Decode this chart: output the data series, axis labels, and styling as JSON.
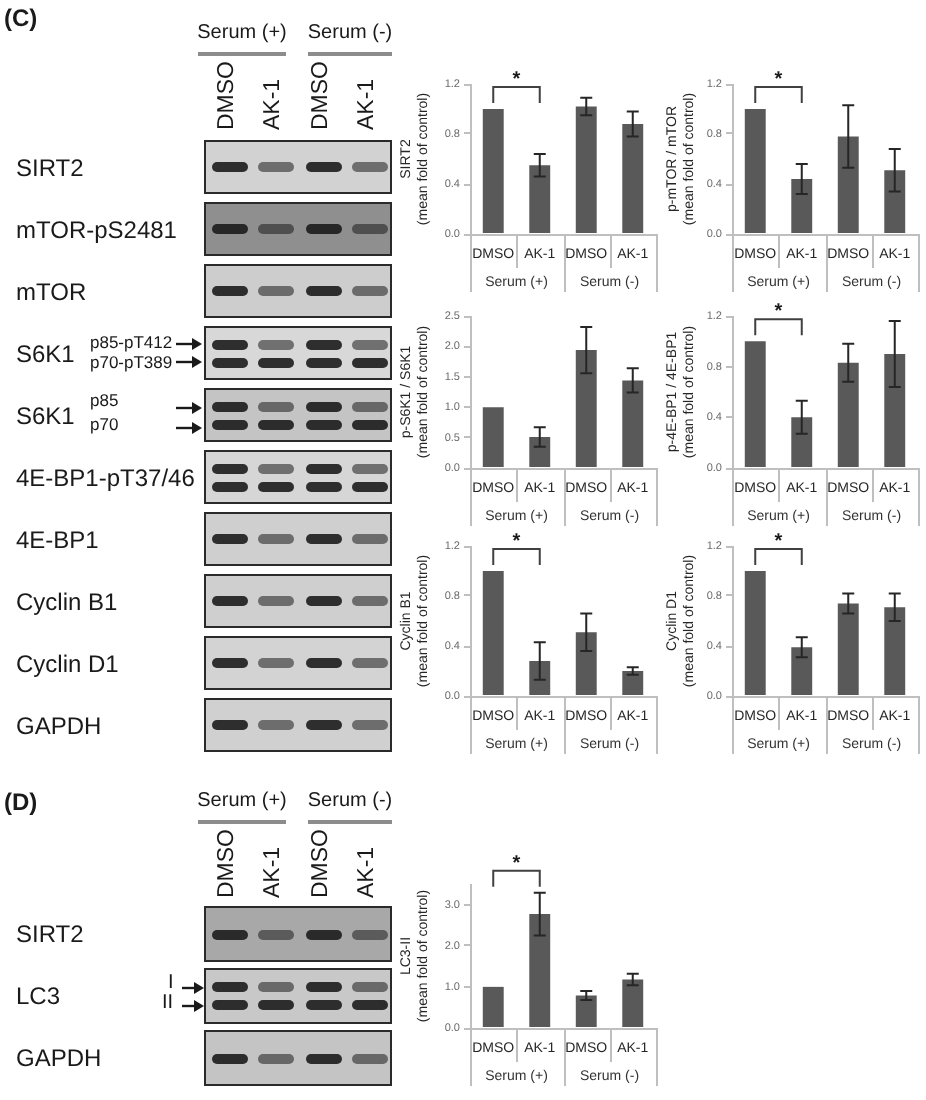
{
  "chart_data": [
    {
      "type": "other",
      "title": "(C)",
      "categories": [
        "DMSO",
        "AK-1",
        "DMSO",
        "AK-1"
      ],
      "y_categories": [
        "SIRT2",
        "mTOR-pS2481",
        "mTOR",
        "S6K1",
        "S6K1",
        "4E-BP1-pT37/46",
        "4E-BP1",
        "Cyclin B1",
        "Cyclin D1",
        "GAPDH"
      ],
      "annotations": [
        "Serum (+)",
        "Serum (-)",
        "p85-pT412",
        "p70-pT389",
        "p85",
        "p70"
      ]
    },
    {
      "type": "bar",
      "ylabel": "SIRT2\n(mean fold of control)",
      "categories": [
        "DMSO",
        "AK-1",
        "DMSO",
        "AK-1"
      ],
      "values": [
        1,
        0.55,
        1.02,
        0.88
      ],
      "errors": [
        null,
        0.09,
        0.07,
        0.1
      ],
      "color": "#595959",
      "ylim": [
        0,
        1.2
      ],
      "yticks": [
        {
          "value": 0,
          "label": "0.0"
        },
        0.4,
        0.8,
        1.2
      ],
      "annotations": [
        "Serum (+)",
        "Serum (-)",
        "*"
      ]
    },
    {
      "type": "bar",
      "ylabel": "p-mTOR / mTOR\n(mean fold of control)",
      "categories": [
        "DMSO",
        "AK-1",
        "DMSO",
        "AK-1"
      ],
      "values": [
        1,
        0.44,
        0.78,
        0.51
      ],
      "errors": [
        null,
        0.12,
        0.25,
        0.17
      ],
      "color": "#595959",
      "ylim": [
        0,
        1.2
      ],
      "yticks": [
        {
          "value": 0,
          "label": "0.0"
        },
        0.4,
        0.8,
        1.2
      ],
      "annotations": [
        "Serum (+)",
        "Serum (-)",
        "*"
      ]
    },
    {
      "type": "bar",
      "ylabel": "p-S6K1 / S6K1\n(mean fold of control)",
      "categories": [
        "DMSO",
        "AK-1",
        "DMSO",
        "AK-1"
      ],
      "values": [
        1,
        0.51,
        1.94,
        1.44
      ],
      "errors": [
        null,
        0.16,
        0.38,
        0.2
      ],
      "color": "#595959",
      "ylim": [
        0,
        2.5
      ],
      "yticks": [
        {
          "value": 0,
          "label": "0.0"
        },
        0.5,
        {
          "value": 1,
          "label": "1.0"
        },
        1.5,
        {
          "value": 2,
          "label": "2.0"
        },
        2.5
      ],
      "annotations": [
        "Serum (+)",
        "Serum (-)"
      ]
    },
    {
      "type": "bar",
      "ylabel": "p-4E-BP1 / 4E-BP1\n(mean fold of control)",
      "categories": [
        "DMSO",
        "AK-1",
        "DMSO",
        "AK-1"
      ],
      "values": [
        1,
        0.4,
        0.83,
        0.9
      ],
      "errors": [
        null,
        0.13,
        0.15,
        0.26
      ],
      "color": "#595959",
      "ylim": [
        0,
        1.2
      ],
      "yticks": [
        {
          "value": 0,
          "label": "0.0"
        },
        0.4,
        0.8,
        1.2
      ],
      "annotations": [
        "Serum (+)",
        "Serum (-)",
        "*"
      ]
    },
    {
      "type": "bar",
      "ylabel": "Cyclin B1\n(mean fold of control)",
      "categories": [
        "DMSO",
        "AK-1",
        "DMSO",
        "AK-1"
      ],
      "values": [
        1,
        0.28,
        0.51,
        0.2
      ],
      "errors": [
        null,
        0.15,
        0.15,
        0.03
      ],
      "color": "#595959",
      "ylim": [
        0,
        1.2
      ],
      "yticks": [
        {
          "value": 0,
          "label": "0.0"
        },
        0.4,
        0.8,
        1.2
      ],
      "annotations": [
        "Serum (+)",
        "Serum (-)",
        "*"
      ]
    },
    {
      "type": "bar",
      "ylabel": "Cyclin D1\n(mean fold of control)",
      "categories": [
        "DMSO",
        "AK-1",
        "DMSO",
        "AK-1"
      ],
      "values": [
        1,
        0.39,
        0.74,
        0.71
      ],
      "errors": [
        null,
        0.08,
        0.08,
        0.11
      ],
      "color": "#595959",
      "ylim": [
        0,
        1.2
      ],
      "yticks": [
        {
          "value": 0,
          "label": "0.0"
        },
        0.4,
        0.8,
        1.2
      ],
      "annotations": [
        "Serum (+)",
        "Serum (-)",
        "*"
      ]
    },
    {
      "type": "other",
      "title": "(D)",
      "categories": [
        "DMSO",
        "AK-1",
        "DMSO",
        "AK-1"
      ],
      "y_categories": [
        "SIRT2",
        "LC3",
        "GAPDH"
      ],
      "annotations": [
        "Serum (+)",
        "Serum (-)",
        "I",
        "II"
      ]
    },
    {
      "type": "bar",
      "ylabel": "LC3-II\n(mean fold of control)",
      "categories": [
        "DMSO",
        "AK-1",
        "DMSO",
        "AK-1"
      ],
      "values": [
        1,
        2.77,
        0.79,
        1.18
      ],
      "errors": [
        null,
        0.52,
        0.11,
        0.14
      ],
      "color": "#595959",
      "ylim": [
        0,
        3.5
      ],
      "yticks": [
        {
          "value": 0,
          "label": "0.0"
        },
        {
          "value": 1,
          "label": "1.0"
        },
        {
          "value": 2,
          "label": "2.0"
        },
        {
          "value": 3,
          "label": "3.0"
        }
      ],
      "annotations": [
        "Serum (+)",
        "Serum (-)",
        "*"
      ]
    }
  ]
}
